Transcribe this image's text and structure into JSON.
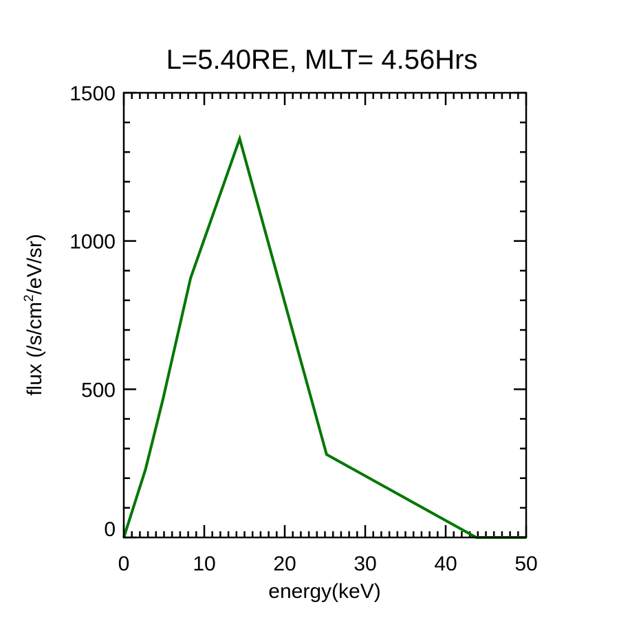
{
  "chart_data": {
    "type": "line",
    "title": "L=5.40RE, MLT= 4.56Hrs",
    "xlabel": "energy(keV)",
    "ylabel_parts": [
      "flux (/s/cm",
      "2",
      "/eV/sr)"
    ],
    "xlim": [
      0,
      50
    ],
    "ylim": [
      0,
      1500
    ],
    "xticks": [
      0,
      10,
      20,
      30,
      40,
      50
    ],
    "yticks": [
      0,
      500,
      1000,
      1500
    ],
    "x_minor_step": 1,
    "y_minor_step": 100,
    "grid": false,
    "line_color": "#007700",
    "series": [
      {
        "x": [
          0,
          2.7,
          4.9,
          8.3,
          14.4,
          25.2,
          43.8,
          50
        ],
        "y": [
          0,
          230,
          470,
          875,
          1345,
          280,
          0,
          0
        ]
      }
    ]
  }
}
